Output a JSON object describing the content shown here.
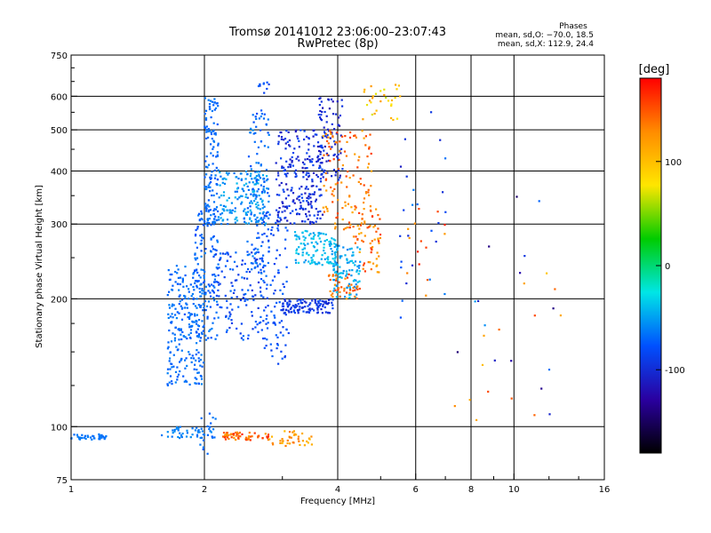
{
  "chart_data": {
    "type": "scatter",
    "title": "Tromsø 20141012 23:06:00–23:07:43",
    "subtitle": "RwPretec (8p)",
    "xlabel": "Frequency [MHz]",
    "ylabel": "Stationary phase Virtual Height [km]",
    "x_scale": "log",
    "y_scale": "log",
    "xlim": [
      1,
      16
    ],
    "ylim": [
      75,
      750
    ],
    "x_ticks": [
      1,
      2,
      4,
      6,
      8,
      10,
      16
    ],
    "y_ticks": [
      75,
      100,
      200,
      300,
      400,
      500,
      600,
      750
    ],
    "x_grid": [
      2,
      4,
      6,
      8,
      10
    ],
    "y_grid": [
      100,
      200,
      300,
      400,
      500,
      600
    ],
    "x_minor_ticks": [
      3,
      5,
      7,
      9,
      12,
      14
    ],
    "y_minor_ticks": [
      125,
      150,
      175,
      250,
      350,
      450,
      550,
      650,
      700
    ],
    "colorbar": {
      "label": "[deg]",
      "min": -180,
      "max": 180,
      "ticks": [
        100,
        0,
        -100
      ],
      "colors": [
        "#ff0000",
        "#ff8c00",
        "#ffe600",
        "#00cc00",
        "#00e6e6",
        "#0050ff",
        "#2a00a0",
        "#000000"
      ]
    },
    "stats": {
      "heading": "Phases",
      "line1": "mean, sd,O: −70.0, 18.5",
      "line2": "mean, sd,X: 112.9, 24.4"
    },
    "series": [
      {
        "mode": "O",
        "clusters": [
          {
            "x": [
              1.0,
              1.2
            ],
            "y": [
              93,
              96
            ],
            "phase": [
              -70,
              -60
            ],
            "n": 40
          },
          {
            "x": [
              1.6,
              2.1
            ],
            "y": [
              94,
              100
            ],
            "phase": [
              -70,
              -55
            ],
            "n": 45
          },
          {
            "x": [
              1.95,
              2.12
            ],
            "y": [
              85,
              110
            ],
            "phase": [
              -75,
              -60
            ],
            "n": 15
          },
          {
            "x": [
              1.65,
              2.0
            ],
            "y": [
              125,
              240
            ],
            "phase": [
              -75,
              -60
            ],
            "n": 240
          },
          {
            "x": [
              1.9,
              2.15
            ],
            "y": [
              160,
              330
            ],
            "phase": [
              -80,
              -60
            ],
            "n": 140
          },
          {
            "x": [
              2.0,
              2.15
            ],
            "y": [
              300,
              600
            ],
            "phase": [
              -75,
              -60
            ],
            "n": 120
          },
          {
            "x": [
              2.15,
              2.8
            ],
            "y": [
              300,
              400
            ],
            "phase": [
              -70,
              -40
            ],
            "n": 170
          },
          {
            "x": [
              2.1,
              2.7
            ],
            "y": [
              160,
              260
            ],
            "phase": [
              -95,
              -65
            ],
            "n": 130
          },
          {
            "x": [
              2.5,
              2.8
            ],
            "y": [
              220,
              560
            ],
            "phase": [
              -80,
              -55
            ],
            "n": 100
          },
          {
            "x": [
              2.7,
              3.1
            ],
            "y": [
              140,
              330
            ],
            "phase": [
              -90,
              -70
            ],
            "n": 110
          },
          {
            "x": [
              2.9,
              3.7
            ],
            "y": [
              300,
              500
            ],
            "phase": [
              -115,
              -80
            ],
            "n": 230
          },
          {
            "x": [
              3.0,
              3.9
            ],
            "y": [
              185,
              200
            ],
            "phase": [
              -105,
              -80
            ],
            "n": 110
          },
          {
            "x": [
              3.2,
              4.0
            ],
            "y": [
              240,
              290
            ],
            "phase": [
              -55,
              -30
            ],
            "n": 120
          },
          {
            "x": [
              3.6,
              4.1
            ],
            "y": [
              380,
              600
            ],
            "phase": [
              -120,
              -90
            ],
            "n": 90
          },
          {
            "x": [
              3.9,
              4.5
            ],
            "y": [
              200,
              270
            ],
            "phase": [
              -60,
              -35
            ],
            "n": 90
          },
          {
            "x": [
              2.6,
              2.8
            ],
            "y": [
              600,
              650
            ],
            "phase": [
              -90,
              -70
            ],
            "n": 10
          },
          {
            "x": [
              5.5,
              7.0
            ],
            "y": [
              180,
              560
            ],
            "phase": [
              -110,
              -60
            ],
            "n": 24
          },
          {
            "x": [
              7.0,
              12.5
            ],
            "y": [
              100,
              350
            ],
            "phase": [
              -150,
              -50
            ],
            "n": 16
          }
        ]
      },
      {
        "mode": "X",
        "clusters": [
          {
            "x": [
              2.2,
              2.8
            ],
            "y": [
              93,
              97
            ],
            "phase": [
              120,
              170
            ],
            "n": 60
          },
          {
            "x": [
              2.8,
              3.5
            ],
            "y": [
              90,
              98
            ],
            "phase": [
              100,
              140
            ],
            "n": 40
          },
          {
            "x": [
              3.7,
              4.8
            ],
            "y": [
              290,
              500
            ],
            "phase": [
              110,
              160
            ],
            "n": 120
          },
          {
            "x": [
              4.3,
              5.0
            ],
            "y": [
              230,
              330
            ],
            "phase": [
              110,
              160
            ],
            "n": 60
          },
          {
            "x": [
              3.8,
              4.5
            ],
            "y": [
              200,
              230
            ],
            "phase": [
              120,
              160
            ],
            "n": 40
          },
          {
            "x": [
              4.5,
              5.6
            ],
            "y": [
              520,
              640
            ],
            "phase": [
              60,
              130
            ],
            "n": 30
          },
          {
            "x": [
              5.6,
              7.0
            ],
            "y": [
              200,
              350
            ],
            "phase": [
              120,
              170
            ],
            "n": 14
          },
          {
            "x": [
              7.0,
              13.0
            ],
            "y": [
              95,
              320
            ],
            "phase": [
              90,
              160
            ],
            "n": 14
          }
        ]
      }
    ]
  }
}
